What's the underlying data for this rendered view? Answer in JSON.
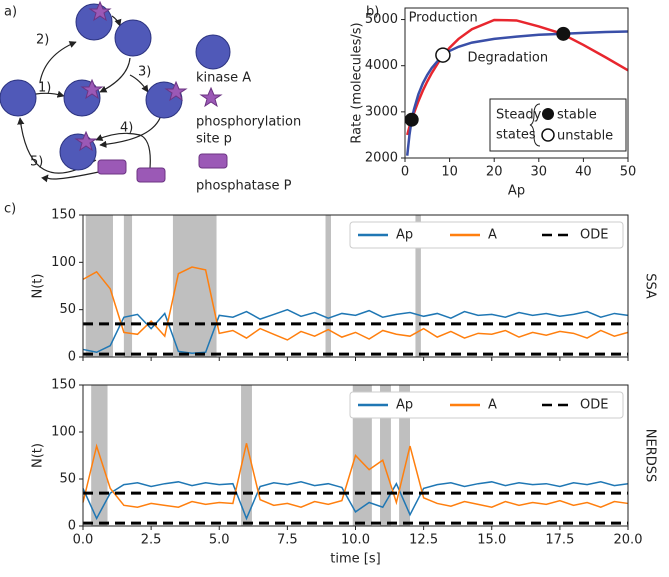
{
  "diagram": {
    "panel_label": "a)",
    "steps": [
      "1)",
      "2)",
      "3)",
      "4)",
      "5)"
    ],
    "legend": [
      "kinase A",
      "phosphorylation",
      "site p",
      "phosphatase P"
    ]
  },
  "chart_data": [
    {
      "type": "line",
      "panel_label": "b)",
      "xlabel": "Ap",
      "ylabel": "Rate (molecules/s)",
      "x": [
        0.5,
        1,
        1.5,
        2,
        3,
        4,
        5,
        6,
        8,
        10,
        12,
        15,
        20,
        25,
        30,
        35,
        40,
        45,
        50
      ],
      "series": [
        {
          "name": "Production",
          "color": "#e8262e",
          "values": [
            2500,
            2680,
            2830,
            2970,
            3230,
            3460,
            3660,
            3840,
            4150,
            4390,
            4580,
            4790,
            4990,
            4980,
            4850,
            4700,
            4450,
            4180,
            3900
          ]
        },
        {
          "name": "Degradation",
          "color": "#3a4fa8",
          "values": [
            2050,
            2500,
            2830,
            3050,
            3380,
            3620,
            3800,
            3950,
            4180,
            4320,
            4410,
            4500,
            4580,
            4630,
            4670,
            4690,
            4710,
            4730,
            4740
          ]
        }
      ],
      "xlim": [
        0,
        50
      ],
      "xticks": [
        0,
        10,
        20,
        30,
        40,
        50
      ],
      "ylim": [
        2000,
        5250
      ],
      "yticks": [
        2000,
        3000,
        4000,
        5000
      ],
      "steady_states": {
        "title": [
          "Steady",
          "states"
        ],
        "stable": {
          "name": "stable",
          "x": [
            1.5,
            35.5
          ],
          "y": [
            2830,
            4690
          ]
        },
        "unstable": {
          "name": "unstable",
          "x": [
            8.5
          ],
          "y": [
            4230
          ]
        }
      }
    },
    {
      "type": "line",
      "panel_label": "c)",
      "ylabel": "N(t)",
      "side_label": "SSA",
      "x": [
        0,
        0.5,
        1,
        1.5,
        2,
        2.5,
        3,
        3.5,
        4,
        4.5,
        5,
        5.5,
        6,
        6.5,
        7,
        7.5,
        8,
        8.5,
        9,
        9.5,
        10,
        10.5,
        11,
        11.5,
        12,
        12.5,
        13,
        13.5,
        14,
        14.5,
        15,
        15.5,
        16,
        16.5,
        17,
        17.5,
        18,
        18.5,
        19,
        19.5,
        20
      ],
      "series": [
        {
          "name": "Ap",
          "color": "#1f77b4",
          "values": [
            8,
            5,
            12,
            42,
            45,
            30,
            46,
            6,
            4,
            5,
            44,
            42,
            48,
            40,
            45,
            50,
            43,
            47,
            41,
            46,
            44,
            49,
            42,
            45,
            47,
            43,
            46,
            41,
            48,
            44,
            45,
            42,
            47,
            44,
            46,
            43,
            45,
            48,
            42,
            46,
            44
          ]
        },
        {
          "name": "A",
          "color": "#ff7f0e",
          "values": [
            82,
            90,
            72,
            26,
            24,
            38,
            22,
            88,
            95,
            92,
            25,
            28,
            20,
            30,
            24,
            18,
            27,
            22,
            29,
            21,
            26,
            19,
            28,
            24,
            22,
            30,
            21,
            27,
            20,
            25,
            24,
            28,
            21,
            26,
            23,
            27,
            25,
            20,
            28,
            22,
            26
          ]
        }
      ],
      "ode": {
        "name": "ODE",
        "color": "#000000",
        "levels": [
          35,
          3
        ]
      },
      "shaded": [
        [
          0.1,
          1.1
        ],
        [
          1.5,
          1.8
        ],
        [
          3.3,
          4.9
        ],
        [
          8.9,
          9.1
        ],
        [
          12.2,
          12.4
        ]
      ],
      "xlim": [
        0,
        20
      ],
      "ylim": [
        0,
        150
      ],
      "yticks": [
        0,
        50,
        100,
        150
      ],
      "legend": "upper right"
    },
    {
      "type": "line",
      "ylabel": "N(t)",
      "side_label": "NERDSS",
      "xlabel": "time [s]",
      "x": [
        0,
        0.5,
        1,
        1.5,
        2,
        2.5,
        3,
        3.5,
        4,
        4.5,
        5,
        5.5,
        6,
        6.5,
        7,
        7.5,
        8,
        8.5,
        9,
        9.5,
        10,
        10.5,
        11,
        11.5,
        12,
        12.5,
        13,
        13.5,
        14,
        14.5,
        15,
        15.5,
        16,
        16.5,
        17,
        17.5,
        18,
        18.5,
        19,
        19.5,
        20
      ],
      "series": [
        {
          "name": "Ap",
          "color": "#1f77b4",
          "values": [
            40,
            8,
            35,
            44,
            46,
            42,
            45,
            47,
            43,
            46,
            44,
            45,
            8,
            42,
            46,
            44,
            47,
            43,
            45,
            41,
            15,
            25,
            20,
            45,
            12,
            40,
            44,
            46,
            42,
            45,
            47,
            43,
            46,
            44,
            45,
            42,
            46,
            44,
            47,
            43,
            45
          ]
        },
        {
          "name": "A",
          "color": "#ff7f0e",
          "values": [
            25,
            85,
            40,
            22,
            20,
            24,
            22,
            20,
            26,
            23,
            25,
            24,
            88,
            28,
            22,
            24,
            20,
            26,
            23,
            27,
            75,
            60,
            70,
            25,
            85,
            30,
            24,
            21,
            26,
            23,
            20,
            26,
            22,
            25,
            23,
            27,
            22,
            25,
            20,
            26,
            24
          ]
        }
      ],
      "ode": {
        "name": "ODE",
        "color": "#000000",
        "levels": [
          35,
          3
        ]
      },
      "shaded": [
        [
          0.3,
          0.9
        ],
        [
          5.8,
          6.2
        ],
        [
          9.9,
          10.6
        ],
        [
          10.9,
          11.3
        ],
        [
          11.6,
          12.0
        ]
      ],
      "xlim": [
        0,
        20
      ],
      "xticks": [
        {
          "value": 0,
          "label": "0.0"
        },
        {
          "value": 2.5,
          "label": "2.5"
        },
        {
          "value": 5,
          "label": "5.0"
        },
        {
          "value": 7.5,
          "label": "7.5"
        },
        {
          "value": 10,
          "label": "10.0"
        },
        {
          "value": 12.5,
          "label": "12.5"
        },
        {
          "value": 15,
          "label": "15.0"
        },
        {
          "value": 17.5,
          "label": "17.5"
        },
        {
          "value": 20,
          "label": "20.0"
        }
      ],
      "ylim": [
        0,
        150
      ],
      "yticks": [
        0,
        50,
        100,
        150
      ],
      "legend": "upper right"
    }
  ]
}
